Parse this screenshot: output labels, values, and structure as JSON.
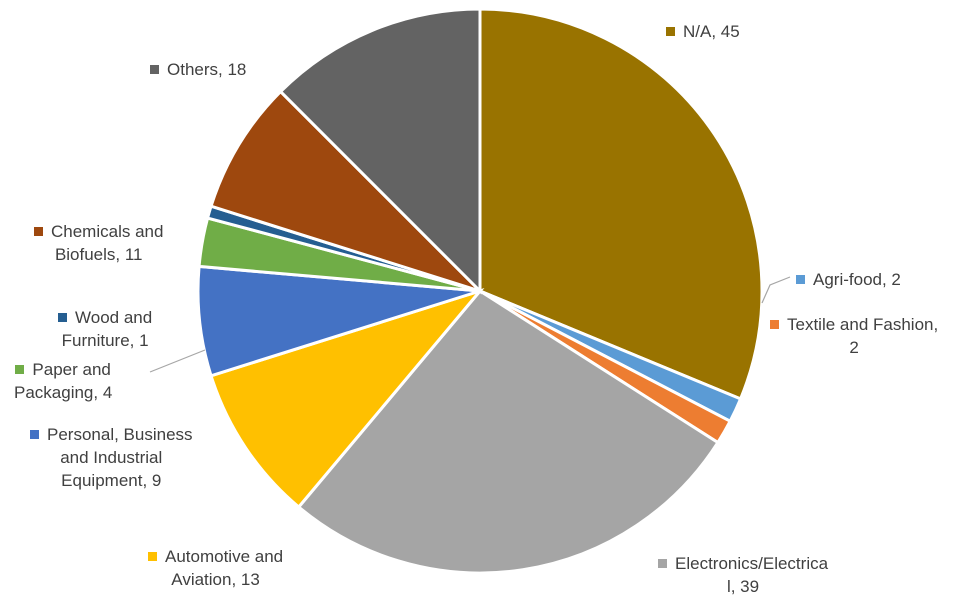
{
  "chart_data": {
    "type": "pie",
    "title": "",
    "slices": [
      {
        "label_lines": [
          "N/A, 45"
        ],
        "category": "N/A",
        "value": 45,
        "color": "#997300"
      },
      {
        "label_lines": [
          "Agri-food, 2"
        ],
        "category": "Agri-food",
        "value": 2,
        "color": "#5b9bd5"
      },
      {
        "label_lines": [
          "Textile and Fashion,",
          "2"
        ],
        "category": "Textile and Fashion",
        "value": 2,
        "color": "#ed7d31"
      },
      {
        "label_lines": [
          "Electronics/Electrica",
          "l, 39"
        ],
        "category": "Electronics/Electrical",
        "value": 39,
        "color": "#a5a5a5"
      },
      {
        "label_lines": [
          "Automotive and",
          "Aviation, 13"
        ],
        "category": "Automotive and Aviation",
        "value": 13,
        "color": "#ffc000"
      },
      {
        "label_lines": [
          "Personal, Business",
          "and Industrial",
          "Equipment, 9"
        ],
        "category": "Personal, Business and Industrial Equipment",
        "value": 9,
        "color": "#4472c4"
      },
      {
        "label_lines": [
          "Paper and",
          "Packaging, 4"
        ],
        "category": "Paper and Packaging",
        "value": 4,
        "color": "#70ad47"
      },
      {
        "label_lines": [
          "Wood and",
          "Furniture, 1"
        ],
        "category": "Wood and Furniture",
        "value": 1,
        "color": "#255e91"
      },
      {
        "label_lines": [
          "Chemicals and",
          "Biofuels, 11"
        ],
        "category": "Chemicals and Biofuels",
        "value": 11,
        "color": "#9e480e"
      },
      {
        "label_lines": [
          "Others, 18"
        ],
        "category": "Others",
        "value": 18,
        "color": "#636363"
      }
    ]
  }
}
